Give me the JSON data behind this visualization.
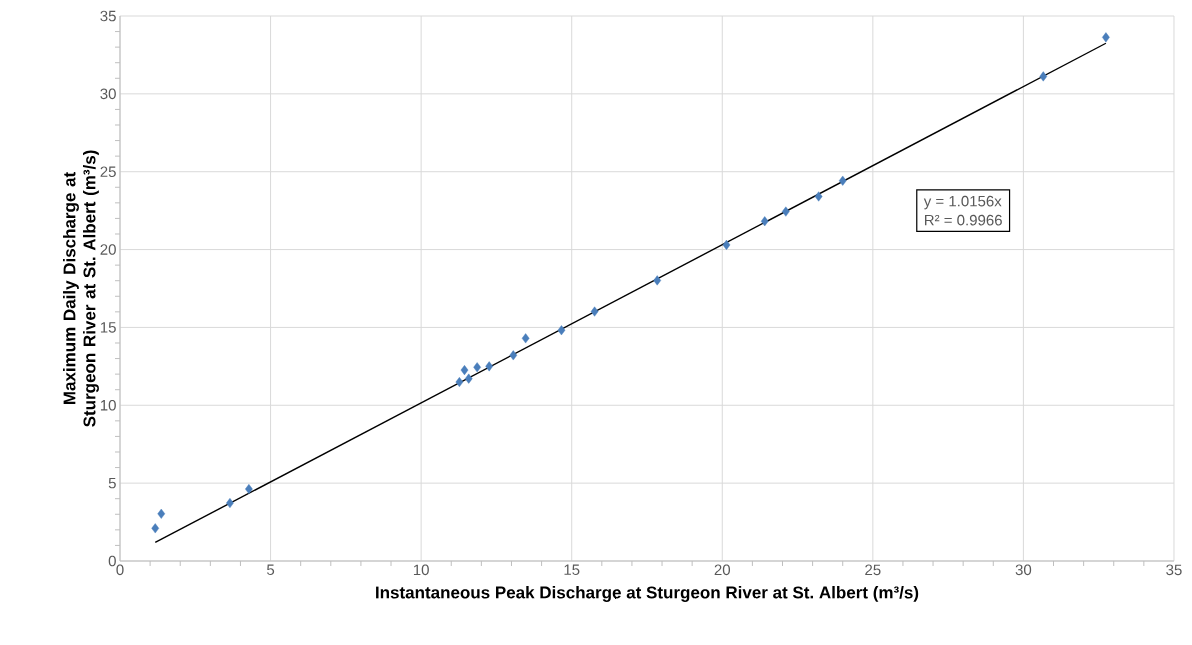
{
  "chart_data": {
    "type": "scatter",
    "xlabel": "Instantaneous Peak Discharge at Sturgeon River at St. Albert (m³/s)",
    "ylabel": "Maximum Daily Discharge at Sturgeon River at St. Albert (m³/s)",
    "annotations": [
      "y = 1.0156x",
      "R² = 0.9966"
    ],
    "xlim": [
      0,
      35
    ],
    "ylim": [
      0,
      35
    ],
    "xticks": [
      0,
      5,
      10,
      15,
      20,
      25,
      30,
      35
    ],
    "yticks": [
      0,
      5,
      10,
      15,
      20,
      25,
      30,
      35
    ],
    "grid": true,
    "legend": false,
    "marker": "diamond",
    "series": [
      {
        "type": "scatter",
        "color": "#4a7ebb",
        "x": [
          1.17,
          1.37,
          3.65,
          4.28,
          11.27,
          11.44,
          11.58,
          11.86,
          12.26,
          13.06,
          13.47,
          14.66,
          15.76,
          17.84,
          20.14,
          21.41,
          22.11,
          23.2,
          24.0,
          30.66,
          32.74
        ],
        "values": [
          2.1,
          3.03,
          3.72,
          4.62,
          11.49,
          12.26,
          11.71,
          12.44,
          12.5,
          13.21,
          14.3,
          14.82,
          16.02,
          18.02,
          20.3,
          21.82,
          22.44,
          23.41,
          24.42,
          31.12,
          33.63
        ]
      },
      {
        "type": "line",
        "color": "#000000",
        "marker": "none",
        "x": [
          1.17,
          32.74
        ],
        "values": [
          1.19,
          33.25
        ]
      }
    ]
  }
}
